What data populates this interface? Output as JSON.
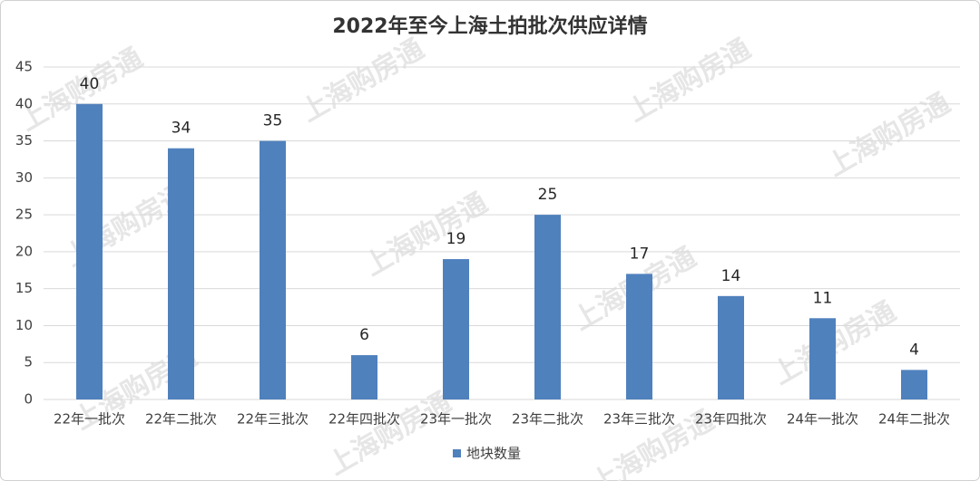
{
  "chart_data": {
    "type": "bar",
    "title": "2022年至今上海土拍批次供应详情",
    "watermark": "上海购房通",
    "categories": [
      "22年一批次",
      "22年二批次",
      "22年三批次",
      "22年四批次",
      "23年一批次",
      "23年二批次",
      "23年三批次",
      "23年四批次",
      "24年一批次",
      "24年二批次"
    ],
    "series": [
      {
        "name": "地块数量",
        "color": "#4f81bd",
        "values": [
          40,
          34,
          35,
          6,
          19,
          25,
          17,
          14,
          11,
          4
        ]
      }
    ],
    "ylim": [
      0,
      45
    ],
    "yticks": [
      0,
      5,
      10,
      15,
      20,
      25,
      30,
      35,
      40,
      45
    ],
    "grid": true,
    "legend": "bottom"
  }
}
